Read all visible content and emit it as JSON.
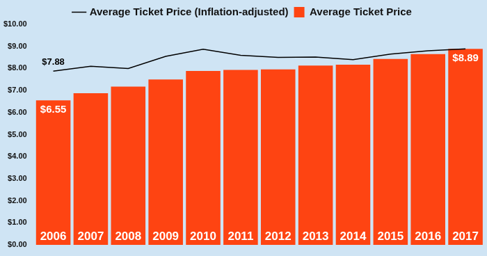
{
  "chart_data": {
    "type": "bar",
    "categories": [
      "2006",
      "2007",
      "2008",
      "2009",
      "2010",
      "2011",
      "2012",
      "2013",
      "2014",
      "2015",
      "2016",
      "2017"
    ],
    "series": [
      {
        "name": "Average Ticket Price",
        "type": "bar",
        "color": "#fe4412",
        "values": [
          6.55,
          6.88,
          7.18,
          7.5,
          7.89,
          7.93,
          7.96,
          8.13,
          8.17,
          8.43,
          8.65,
          8.89
        ],
        "value_labels": [
          "$6.55",
          null,
          null,
          null,
          null,
          null,
          null,
          null,
          null,
          null,
          null,
          "$8.89"
        ]
      },
      {
        "name": "Average Ticket Price (Inflation-adjusted)",
        "type": "line",
        "color": "#000000",
        "line_style": "solid",
        "values": [
          7.88,
          8.1,
          8.0,
          8.55,
          8.87,
          8.6,
          8.5,
          8.52,
          8.4,
          8.65,
          8.8,
          8.89
        ],
        "value_labels": [
          "$7.88",
          null,
          null,
          null,
          null,
          null,
          null,
          null,
          null,
          null,
          null,
          null
        ]
      }
    ],
    "ylim": [
      0,
      10
    ],
    "yticks": [
      {
        "value": 0,
        "label": "$0.00"
      },
      {
        "value": 1,
        "label": "$1.00"
      },
      {
        "value": 2,
        "label": "$2.00"
      },
      {
        "value": 3,
        "label": "$3.00"
      },
      {
        "value": 4,
        "label": "$4.00"
      },
      {
        "value": 5,
        "label": "$5.00"
      },
      {
        "value": 6,
        "label": "$6.00"
      },
      {
        "value": 7,
        "label": "$7.00"
      },
      {
        "value": 8,
        "label": "$8.00"
      },
      {
        "value": 9,
        "label": "$9.00"
      },
      {
        "value": 10,
        "label": "$10.00"
      }
    ],
    "grid": false,
    "legend": "top",
    "data_labels": true
  }
}
